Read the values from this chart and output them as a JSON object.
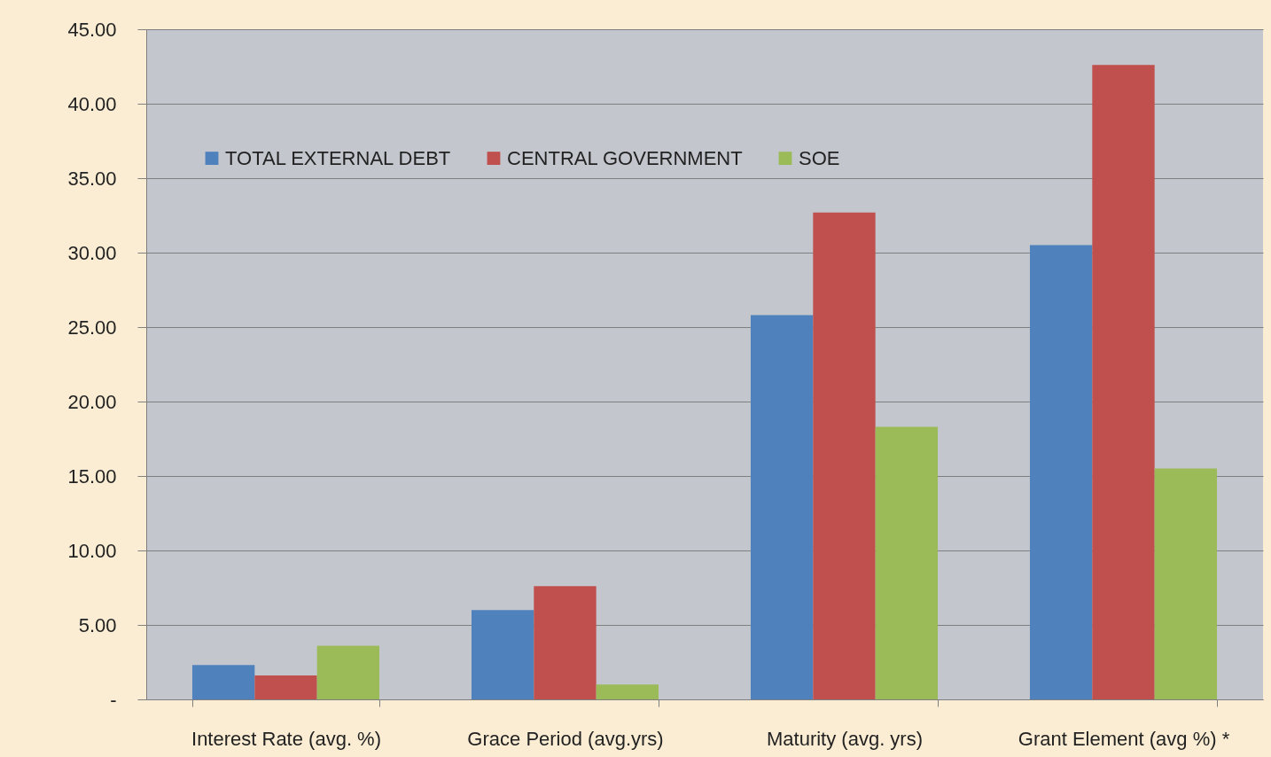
{
  "chart_data": {
    "type": "bar",
    "categories": [
      "Interest Rate (avg. %)",
      "Grace Period (avg.yrs)",
      "Maturity (avg. yrs)",
      "Grant Element (avg %) *"
    ],
    "series": [
      {
        "name": "TOTAL EXTERNAL DEBT",
        "color": "#4f81bd",
        "values": [
          2.3,
          6.0,
          25.8,
          30.5
        ]
      },
      {
        "name": "CENTRAL GOVERNMENT",
        "color": "#c0504d",
        "values": [
          1.6,
          7.6,
          32.7,
          42.6
        ]
      },
      {
        "name": "SOE",
        "color": "#9bbb59",
        "values": [
          3.6,
          1.0,
          18.3,
          15.5
        ]
      }
    ],
    "ylim": [
      0,
      45
    ],
    "yticks": [
      {
        "value": 0,
        "label": "-"
      },
      {
        "value": 5,
        "label": "5.00"
      },
      {
        "value": 10,
        "label": "10.00"
      },
      {
        "value": 15,
        "label": "15.00"
      },
      {
        "value": 20,
        "label": "20.00"
      },
      {
        "value": 25,
        "label": "25.00"
      },
      {
        "value": 30,
        "label": "30.00"
      },
      {
        "value": 35,
        "label": "35.00"
      },
      {
        "value": 40,
        "label": "40.00"
      },
      {
        "value": 45,
        "label": "45.00"
      }
    ],
    "grid": "y",
    "legend": "top left"
  }
}
